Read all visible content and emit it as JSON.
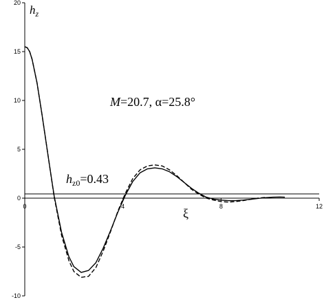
{
  "chart_data": {
    "type": "line",
    "title": "",
    "xlabel": "ξ",
    "ylabel_main": "h",
    "ylabel_sub": "z",
    "xlim": [
      0,
      12
    ],
    "ylim": [
      -10,
      20
    ],
    "x_ticks": [
      0,
      4,
      8,
      12
    ],
    "y_ticks": [
      20,
      15,
      10,
      5,
      0,
      -5,
      -10
    ],
    "x_tick_labels": [
      "0",
      "4",
      "8",
      "12"
    ],
    "y_tick_labels": [
      "20",
      "15",
      "10",
      "5",
      "0",
      "-5",
      "-10"
    ],
    "grid": false,
    "annotation_params": {
      "M_label": "M",
      "M_value": "=20.7, α=25.8°"
    },
    "annotation_threshold": {
      "main": "h",
      "sub": "z0",
      "value": "=0.43"
    },
    "hline": 0.43,
    "series": [
      {
        "style": "solid",
        "x": [
          0,
          0.1,
          0.2,
          0.3,
          0.5,
          0.7,
          1.0,
          1.2,
          1.5,
          1.8,
          2.0,
          2.3,
          2.6,
          2.9,
          3.2,
          3.5,
          3.8,
          4.1,
          4.4,
          4.7,
          5.0,
          5.3,
          5.6,
          5.9,
          6.2,
          6.5,
          6.8,
          7.1,
          7.4,
          7.7,
          8.0,
          8.3,
          8.6,
          8.9,
          9.2,
          9.5,
          9.8,
          10.1,
          10.4,
          10.6
        ],
        "y": [
          15.5,
          15.4,
          15.0,
          14.2,
          11.8,
          8.6,
          3.5,
          0.2,
          -3.5,
          -6.0,
          -7.0,
          -7.6,
          -7.4,
          -6.6,
          -5.1,
          -3.3,
          -1.4,
          0.3,
          1.7,
          2.6,
          3.0,
          3.1,
          3.0,
          2.7,
          2.2,
          1.6,
          1.0,
          0.5,
          0.1,
          -0.1,
          -0.2,
          -0.25,
          -0.25,
          -0.2,
          -0.12,
          -0.03,
          0.05,
          0.1,
          0.12,
          0.1
        ]
      },
      {
        "style": "dashed",
        "x": [
          0,
          0.1,
          0.2,
          0.3,
          0.5,
          0.7,
          1.0,
          1.2,
          1.5,
          1.8,
          2.0,
          2.3,
          2.6,
          2.9,
          3.2,
          3.5,
          3.8,
          4.1,
          4.4,
          4.7,
          5.0,
          5.3,
          5.6,
          5.9,
          6.2,
          6.5,
          6.8,
          7.1,
          7.4,
          7.7,
          8.0,
          8.3,
          8.6,
          8.9,
          9.2,
          9.5,
          9.8
        ],
        "y": [
          15.5,
          15.4,
          15.0,
          14.2,
          11.8,
          8.6,
          3.5,
          0.1,
          -3.8,
          -6.4,
          -7.5,
          -8.1,
          -8.0,
          -7.1,
          -5.4,
          -3.4,
          -1.3,
          0.5,
          2.0,
          2.9,
          3.3,
          3.4,
          3.3,
          2.9,
          2.3,
          1.6,
          0.9,
          0.4,
          0.0,
          -0.2,
          -0.35,
          -0.4,
          -0.35,
          -0.25,
          -0.12,
          0.0,
          0.08
        ]
      }
    ]
  }
}
